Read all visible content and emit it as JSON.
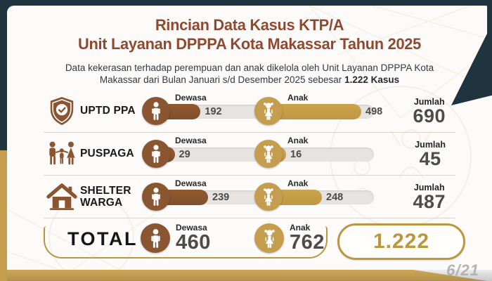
{
  "title": {
    "line1": "Rincian Data Kasus KTP/A",
    "line2": "Unit Layanan DPPPA Kota Makassar Tahun 2025"
  },
  "subtitle": {
    "text": "Data kekerasan terhadap perempuan dan anak dikelola oleh Unit Layanan DPPPA Kota Makassar dari Bulan Januari s/d Desember 2025 sebesar",
    "bold": "1.222 Kasus"
  },
  "labels": {
    "dewasa": "Dewasa",
    "anak": "Anak",
    "jumlah": "Jumlah",
    "total": "TOTAL"
  },
  "rows": [
    {
      "name": "UPTD PPA",
      "icon": "shield-check",
      "dewasa": 192,
      "anak": 498,
      "jumlah": 690
    },
    {
      "name": "PUSPAGA",
      "icon": "family",
      "dewasa": 29,
      "anak": 16,
      "jumlah": 45
    },
    {
      "name": "SHELTER WARGA",
      "icon": "house",
      "dewasa": 239,
      "anak": 248,
      "jumlah": 487
    }
  ],
  "total": {
    "dewasa": 460,
    "anak": 762,
    "jumlah": "1.222"
  },
  "slide_number": "6/21",
  "colors": {
    "navy": "#20343f",
    "gold": "#c59d4e",
    "gold_dark": "#bd9740",
    "brown": "#8a5531",
    "title_brown": "#8e4a31",
    "track_gray": "#e6e3e0",
    "number_gray": "#4c4c4c",
    "slide_gray": "#a9a9a9"
  },
  "chart_data": {
    "type": "bar",
    "title": "Rincian Data Kasus KTP/A Unit Layanan DPPPA Kota Makassar Tahun 2025",
    "subtitle": "Data kekerasan terhadap perempuan dan anak dikelola oleh Unit Layanan DPPPA Kota Makassar dari Bulan Januari s/d Desember 2025 sebesar 1.222 Kasus",
    "categories": [
      "UPTD PPA",
      "PUSPAGA",
      "SHELTER WARGA",
      "TOTAL"
    ],
    "series": [
      {
        "name": "Dewasa",
        "values": [
          192,
          29,
          239,
          460
        ]
      },
      {
        "name": "Anak",
        "values": [
          498,
          16,
          248,
          762
        ]
      }
    ],
    "totals": [
      690,
      45,
      487,
      1222
    ],
    "value_axis_max": 500,
    "grid": false,
    "legend_position": "inline-per-bar"
  }
}
